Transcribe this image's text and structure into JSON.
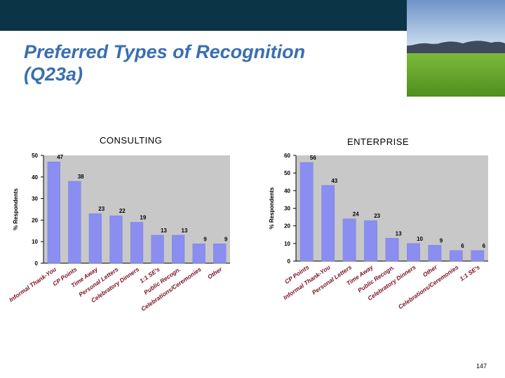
{
  "slide": {
    "title_line1": "Preferred Types of Recognition",
    "title_line2": "(Q23a)",
    "page_number": "147",
    "colors": {
      "header": "#0b3547",
      "title": "#3a6fb0",
      "bar": "#8a8ef0",
      "plot_bg": "#c8c8c8"
    }
  },
  "chart_data": [
    {
      "type": "bar",
      "title": "CONSULTING",
      "ylabel": "% Respondents",
      "ylim": [
        0,
        50
      ],
      "yticks": [
        0,
        10,
        20,
        30,
        40,
        50
      ],
      "categories": [
        "Informal Thank-You",
        "CP Points",
        "Time Away",
        "Personal Letters",
        "Celebratory Dinners",
        "1:1 SE's",
        "Public Recogn.",
        "Celebrations/Ceremonies",
        "Other"
      ],
      "values": [
        47,
        38,
        23,
        22,
        19,
        13,
        13,
        9,
        9
      ],
      "bar_color": "#8a8ef0",
      "grid": false,
      "legend": "none"
    },
    {
      "type": "bar",
      "title": "ENTERPRISE",
      "ylabel": "% Respondents",
      "ylim": [
        0,
        60
      ],
      "yticks": [
        0,
        10,
        20,
        30,
        40,
        50,
        60
      ],
      "categories": [
        "CP Points",
        "Informal Thank-You",
        "Personal Letters",
        "Time Away",
        "Public Recogn.",
        "Celebratory Dinners",
        "Other",
        "Celebrations/Ceremonies",
        "1:1 SE's"
      ],
      "values": [
        56,
        43,
        24,
        23,
        13,
        10,
        9,
        6,
        6
      ],
      "bar_color": "#8a8ef0",
      "grid": false,
      "legend": "none"
    }
  ]
}
